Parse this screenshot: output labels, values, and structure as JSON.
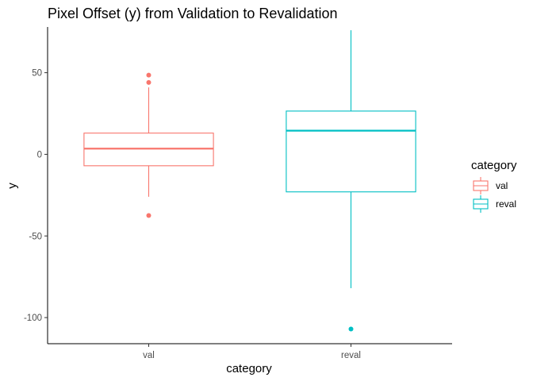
{
  "chart_data": {
    "type": "boxplot",
    "title": "Pixel Offset (y) from Validation to Revalidation",
    "xlabel": "category",
    "ylabel": "y",
    "categories": [
      "val",
      "reval"
    ],
    "ylim": [
      -116,
      78
    ],
    "yticks": [
      -100,
      -50,
      0,
      50
    ],
    "ytick_labels": [
      "-100",
      "-50",
      "0",
      "50"
    ],
    "grid": false,
    "legend": {
      "title": "category",
      "position": "right",
      "entries": [
        "val",
        "reval"
      ]
    },
    "colors": {
      "val": "#F8766D",
      "reval": "#00BFC4"
    },
    "series": [
      {
        "category": "val",
        "lower_whisker": -26,
        "q1": -7,
        "median": 3.5,
        "q3": 13,
        "upper_whisker": 41,
        "outliers": [
          48.5,
          44,
          -37.5
        ]
      },
      {
        "category": "reval",
        "lower_whisker": -82,
        "q1": -23,
        "median": 14.5,
        "q3": 26.5,
        "upper_whisker": 76,
        "outliers": [
          -107
        ]
      }
    ]
  }
}
